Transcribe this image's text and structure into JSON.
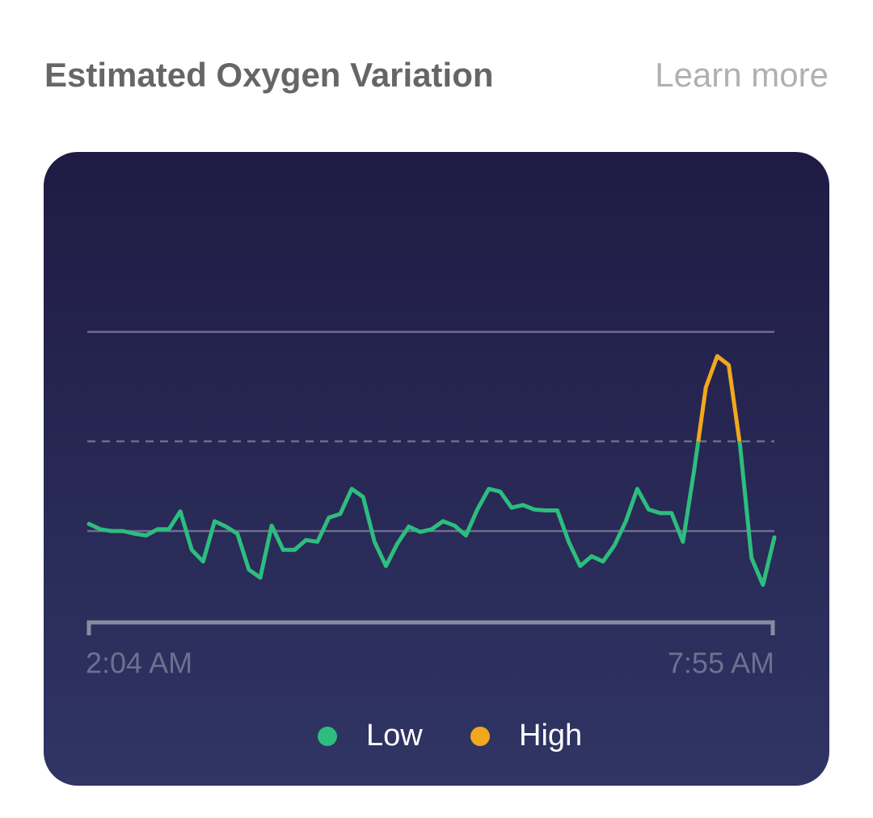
{
  "header": {
    "title": "Estimated Oxygen Variation",
    "link": "Learn more"
  },
  "chart_data": {
    "type": "line",
    "x_labels": [
      "2:04 AM",
      "7:55 AM"
    ],
    "ylim": [
      -1,
      2.5
    ],
    "yticks": [
      0,
      1,
      2.22
    ],
    "grid": true,
    "series": [
      {
        "name": "Low",
        "color": "#2dbd7e",
        "values": [
          0.08,
          0.02,
          0,
          0,
          -0.03,
          -0.05,
          0.02,
          0.02,
          0.22,
          -0.21,
          -0.34,
          0.11,
          0.05,
          -0.03,
          -0.43,
          -0.52,
          0.06,
          -0.21,
          -0.21,
          -0.1,
          -0.12,
          0.15,
          0.19,
          0.47,
          0.38,
          -0.12,
          -0.39,
          -0.14,
          0.05,
          -0.01,
          0.02,
          0.11,
          0.06,
          -0.05,
          0.24,
          0.47,
          0.44,
          0.26,
          0.29,
          0.24,
          0.23,
          0.23,
          -0.12,
          -0.39,
          -0.28,
          -0.34,
          -0.16,
          0.11,
          0.47,
          0.24,
          0.2,
          0.2,
          -0.12,
          0.7,
          1.6,
          1.95,
          1.85,
          0.95,
          -0.3,
          -0.6,
          -0.07
        ]
      }
    ],
    "high": {
      "name": "High",
      "color": "#f2a81d"
    }
  }
}
